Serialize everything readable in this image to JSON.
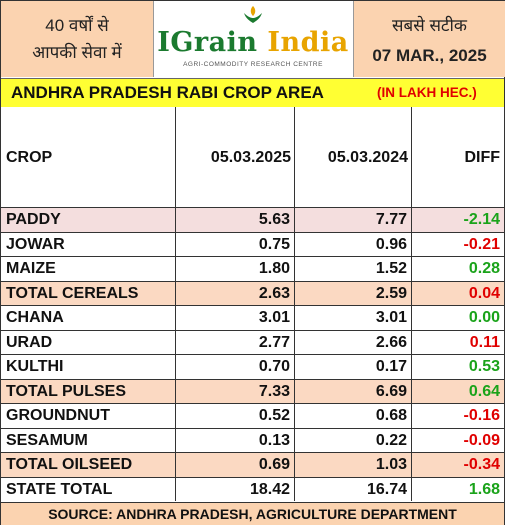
{
  "header": {
    "left_line1": "40 वर्षों से",
    "left_line2": "आपकी सेवा में",
    "logo_word_main": "IGrain",
    "logo_word_accent": "India",
    "logo_tagline": "AGRI-COMMODITY RESEARCH CENTRE",
    "right_line1": "सबसे सटीक",
    "right_date": "07 MAR., 2025"
  },
  "title": {
    "text": "ANDHRA PRADESH RABI CROP AREA",
    "unit": "(IN LAKH HEC.)"
  },
  "table": {
    "headers": [
      "CROP",
      "05.03.2025",
      "05.03.2024",
      "DIFF"
    ],
    "rows": [
      {
        "crop": "PADDY",
        "y2025": "5.63",
        "y2024": "7.77",
        "diff": "-2.14",
        "diff_color": "#1aa31a",
        "bg": "#f4dede"
      },
      {
        "crop": "JOWAR",
        "y2025": "0.75",
        "y2024": "0.96",
        "diff": "-0.21",
        "diff_color": "#e00000",
        "bg": "#ffffff"
      },
      {
        "crop": "MAIZE",
        "y2025": "1.80",
        "y2024": "1.52",
        "diff": "0.28",
        "diff_color": "#1aa31a",
        "bg": "#ffffff"
      },
      {
        "crop": "TOTAL CEREALS",
        "y2025": "2.63",
        "y2024": "2.59",
        "diff": "0.04",
        "diff_color": "#e00000",
        "bg": "#fbd9c2"
      },
      {
        "crop": "CHANA",
        "y2025": "3.01",
        "y2024": "3.01",
        "diff": "0.00",
        "diff_color": "#1aa31a",
        "bg": "#ffffff"
      },
      {
        "crop": "URAD",
        "y2025": "2.77",
        "y2024": "2.66",
        "diff": "0.11",
        "diff_color": "#e00000",
        "bg": "#ffffff"
      },
      {
        "crop": "KULTHI",
        "y2025": "0.70",
        "y2024": "0.17",
        "diff": "0.53",
        "diff_color": "#1aa31a",
        "bg": "#ffffff"
      },
      {
        "crop": "TOTAL PULSES",
        "y2025": "7.33",
        "y2024": "6.69",
        "diff": "0.64",
        "diff_color": "#1aa31a",
        "bg": "#fbd9c2"
      },
      {
        "crop": "GROUNDNUT",
        "y2025": "0.52",
        "y2024": "0.68",
        "diff": "-0.16",
        "diff_color": "#e00000",
        "bg": "#ffffff"
      },
      {
        "crop": "SESAMUM",
        "y2025": "0.13",
        "y2024": "0.22",
        "diff": "-0.09",
        "diff_color": "#e00000",
        "bg": "#ffffff"
      },
      {
        "crop": "TOTAL OILSEED",
        "y2025": "0.69",
        "y2024": "1.03",
        "diff": "-0.34",
        "diff_color": "#e00000",
        "bg": "#fbd9c2"
      },
      {
        "crop": "STATE TOTAL",
        "y2025": "18.42",
        "y2024": "16.74",
        "diff": "1.68",
        "diff_color": "#1aa31a",
        "bg": "#ffffff"
      }
    ]
  },
  "footer": "SOURCE: ANDHRA PRADESH, AGRICULTURE DEPARTMENT",
  "colors": {
    "header_peach": "#fbd3b0",
    "title_yellow": "#ffff33",
    "positive_green": "#1aa31a",
    "negative_red": "#e00000",
    "brand_green": "#1b7a2f"
  }
}
